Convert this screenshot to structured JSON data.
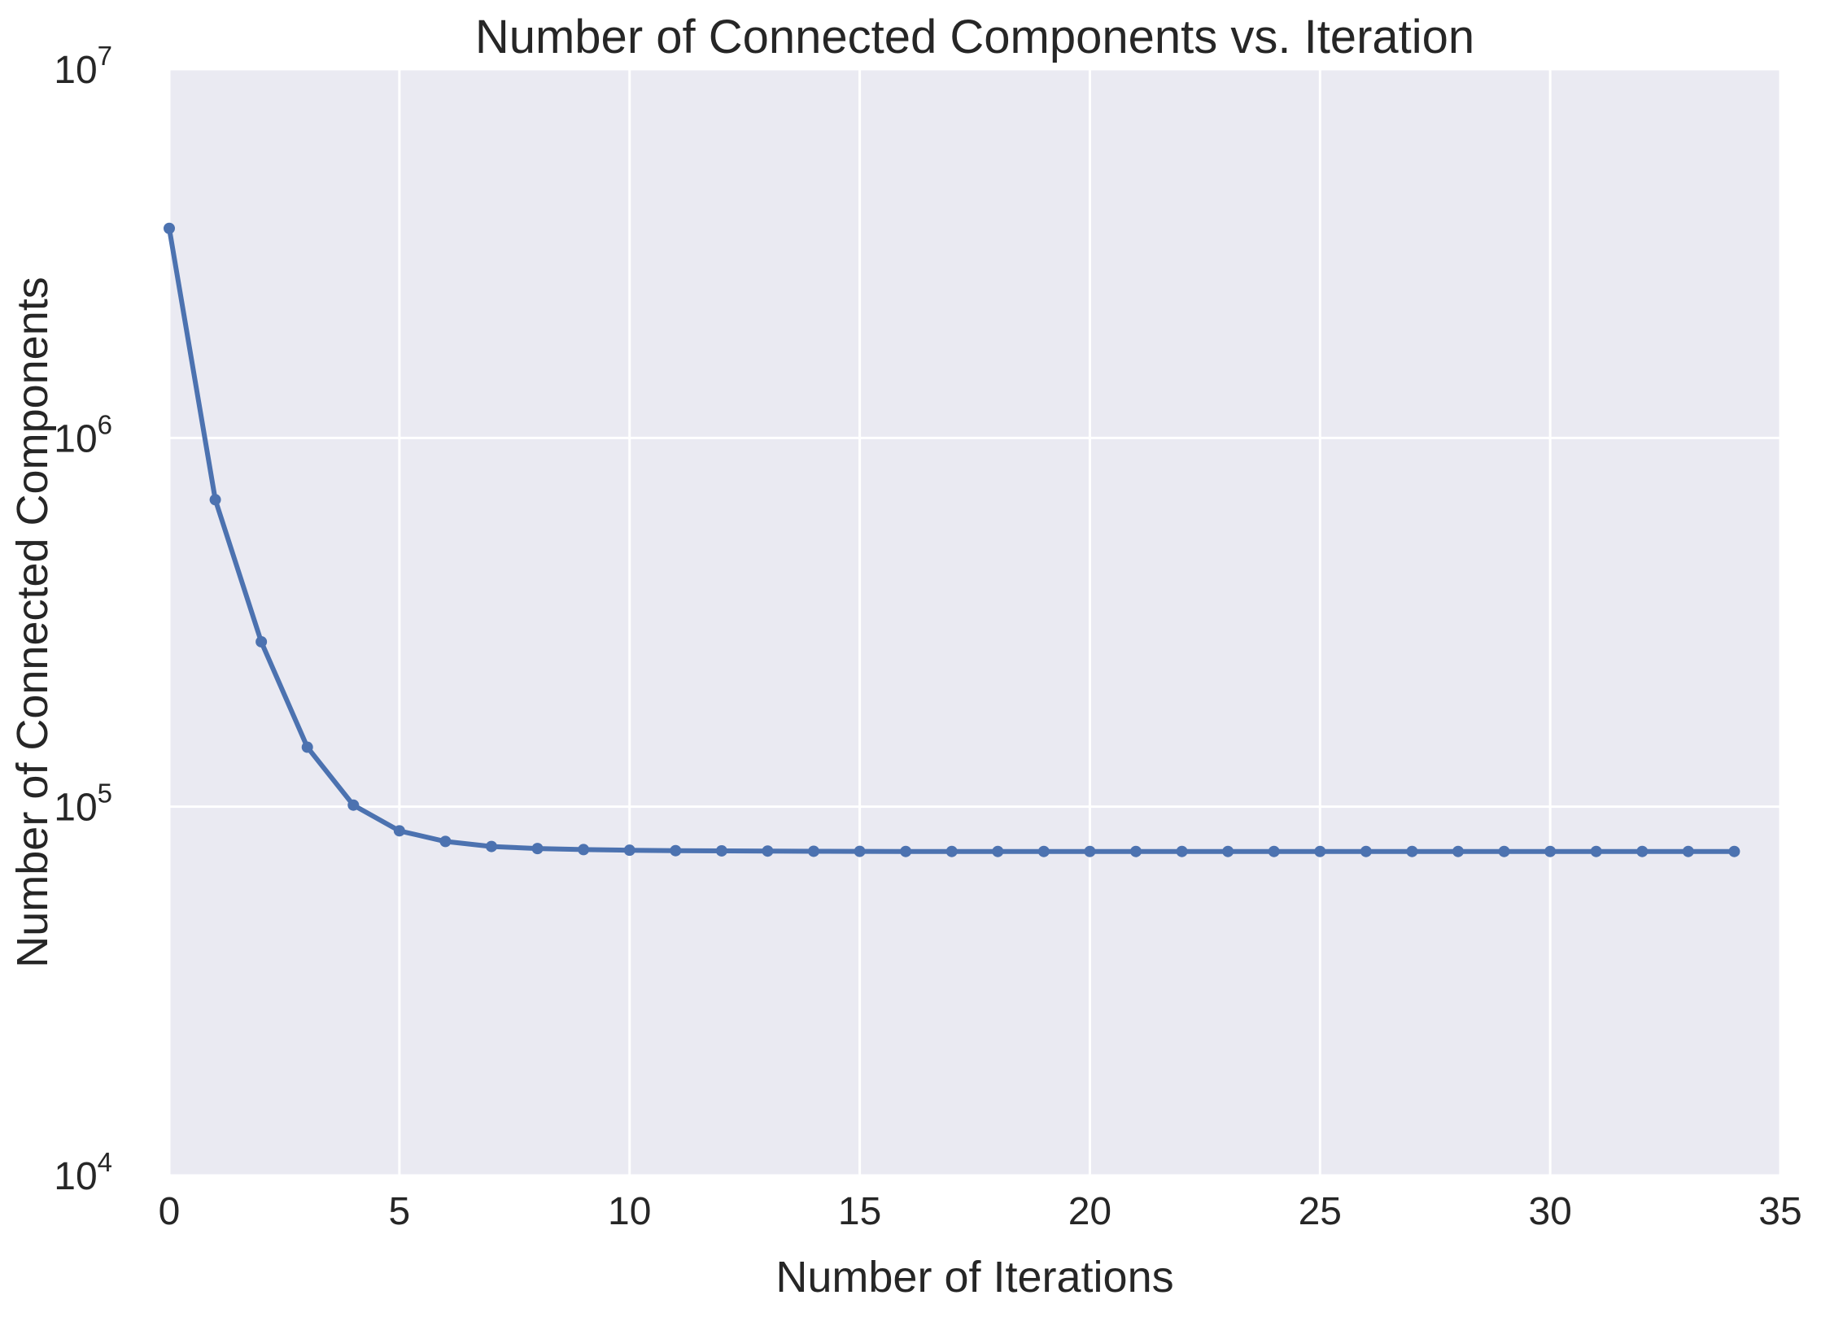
{
  "chart_data": {
    "type": "line",
    "title": "Number of Connected Components vs. Iteration",
    "xlabel": "Number of Iterations",
    "ylabel": "Number of Connected Components",
    "xlim": [
      0,
      35
    ],
    "ylim": [
      10000,
      10000000
    ],
    "yscale": "log",
    "grid": true,
    "x_ticks": [
      "0",
      "5",
      "10",
      "15",
      "20",
      "25",
      "30",
      "35"
    ],
    "y_ticks": [
      {
        "base": "10",
        "exp": "4"
      },
      {
        "base": "10",
        "exp": "5"
      },
      {
        "base": "10",
        "exp": "6"
      },
      {
        "base": "10",
        "exp": "7"
      }
    ],
    "colors": {
      "background": "#eaeaf2",
      "grid": "#ffffff",
      "line": "#4c72b0"
    },
    "series": [
      {
        "marker": "circle",
        "x": [
          0,
          1,
          2,
          3,
          4,
          5,
          6,
          7,
          8,
          9,
          10,
          11,
          12,
          13,
          14,
          15,
          16,
          17,
          18,
          19,
          20,
          21,
          22,
          23,
          24,
          25,
          26,
          27,
          28,
          29,
          30,
          31,
          32,
          33,
          34
        ],
        "y": [
          3700000,
          680000,
          280000,
          145000,
          101000,
          86000,
          80500,
          78000,
          77000,
          76500,
          76200,
          76000,
          75900,
          75800,
          75700,
          75650,
          75600,
          75600,
          75600,
          75600,
          75600,
          75600,
          75600,
          75600,
          75600,
          75600,
          75600,
          75600,
          75600,
          75600,
          75600,
          75600,
          75600,
          75600,
          75600
        ]
      }
    ]
  }
}
